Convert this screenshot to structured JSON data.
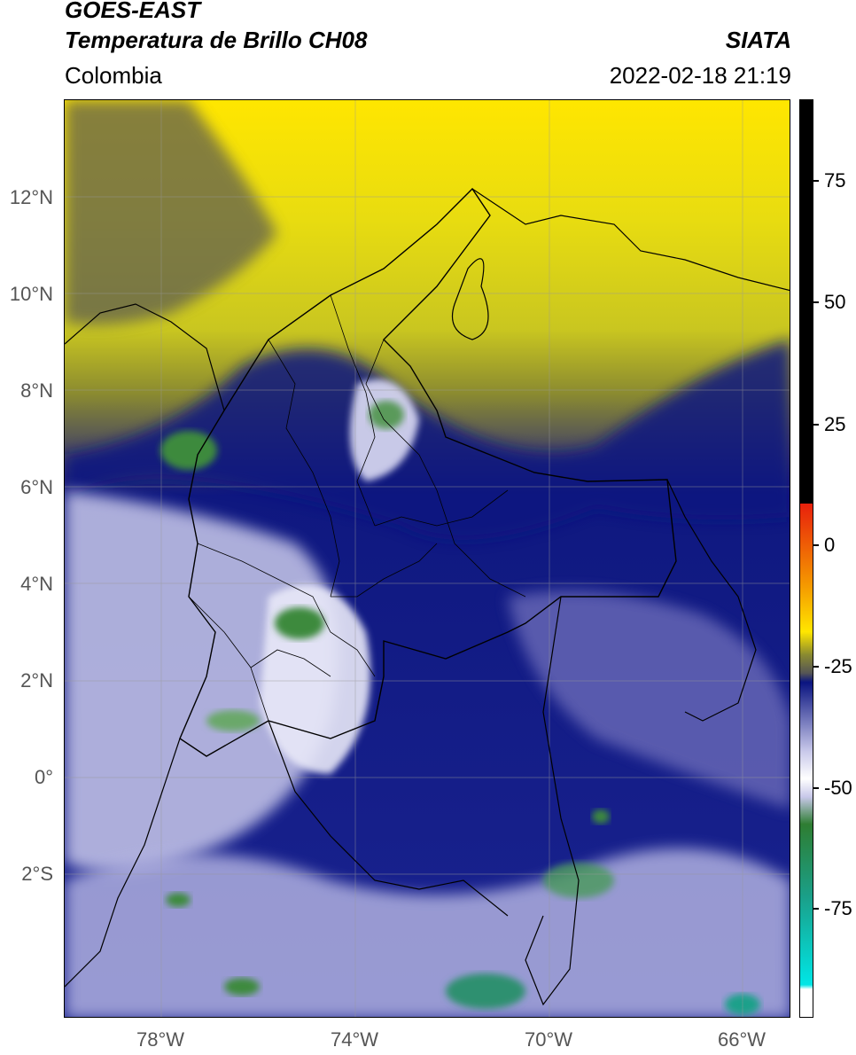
{
  "header": {
    "satellite": "GOES-EAST",
    "product": "Temperatura de Brillo CH08",
    "agency": "SIATA",
    "region": "Colombia",
    "timestamp": "2022-02-18 21:19"
  },
  "map": {
    "y_axis_labels": [
      "12°N",
      "10°N",
      "8°N",
      "6°N",
      "4°N",
      "2°N",
      "0°",
      "2°S"
    ],
    "x_axis_labels": [
      "78°W",
      "74°W",
      "70°W",
      "66°W"
    ],
    "extent": {
      "lon_min": -80,
      "lon_max": -65,
      "lat_min": -5,
      "lat_max": 14
    },
    "grid": true
  },
  "colorbar": {
    "tick_labels": [
      "75",
      "50",
      "25",
      "0",
      "-25",
      "-50",
      "-75"
    ],
    "range": [
      -95,
      90
    ],
    "colors": {
      "black": "#000000",
      "red": "#e8200c",
      "orange": "#f59a00",
      "yellow": "#ffe600",
      "olive": "#8a8a30",
      "gray": "#555555",
      "navy": "#0a1480",
      "lavender": "#c8c8ea",
      "white": "#ffffff",
      "green": "#2e7d32",
      "teal": "#1aa08a",
      "cyan": "#00e6e6"
    }
  }
}
